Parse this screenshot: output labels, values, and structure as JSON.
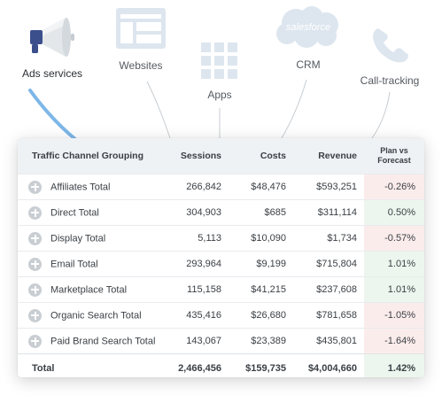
{
  "sources": [
    {
      "label": "Ads services",
      "icon": "megaphone-icon",
      "active": true
    },
    {
      "label": "Websites",
      "icon": "browser-window-icon",
      "active": false
    },
    {
      "label": "Apps",
      "icon": "apps-grid-icon",
      "active": false
    },
    {
      "label": "CRM",
      "icon": "salesforce-cloud-icon",
      "logo_text": "salesforce",
      "active": false
    },
    {
      "label": "Call-tracking",
      "icon": "phone-icon",
      "active": false
    }
  ],
  "colors": {
    "accent_line": "#7db7e8",
    "icon_light": "#dde6ef",
    "megaphone_blue": "#3a4f8c",
    "negative_cell": "#fbecec",
    "positive_cell": "#edf6ee"
  },
  "table": {
    "headers": {
      "name": "Traffic Channel Grouping",
      "sessions": "Sessions",
      "costs": "Costs",
      "revenue": "Revenue",
      "plan_line1": "Plan vs",
      "plan_line2": "Forecast"
    },
    "rows": [
      {
        "name": "Affiliates Total",
        "sessions": "266,842",
        "costs": "$48,476",
        "revenue": "$593,251",
        "plan": "-0.26%",
        "trend": "neg"
      },
      {
        "name": "Direct Total",
        "sessions": "304,903",
        "costs": "$685",
        "revenue": "$311,114",
        "plan": "0.50%",
        "trend": "pos"
      },
      {
        "name": "Display Total",
        "sessions": "5,113",
        "costs": "$10,090",
        "revenue": "$1,734",
        "plan": "-0.57%",
        "trend": "neg"
      },
      {
        "name": "Email Total",
        "sessions": "293,964",
        "costs": "$9,199",
        "revenue": "$715,804",
        "plan": "1.01%",
        "trend": "pos"
      },
      {
        "name": "Marketplace Total",
        "sessions": "115,158",
        "costs": "$41,215",
        "revenue": "$237,608",
        "plan": "1.01%",
        "trend": "pos"
      },
      {
        "name": "Organic Search Total",
        "sessions": "435,416",
        "costs": "$26,680",
        "revenue": "$781,658",
        "plan": "-1.05%",
        "trend": "neg"
      },
      {
        "name": "Paid Brand Search Total",
        "sessions": "143,067",
        "costs": "$23,389",
        "revenue": "$435,801",
        "plan": "-1.64%",
        "trend": "neg"
      }
    ],
    "total": {
      "label": "Total",
      "sessions": "2,466,456",
      "costs": "$159,735",
      "revenue": "$4,004,660",
      "plan": "1.42%",
      "trend": "pos"
    }
  }
}
